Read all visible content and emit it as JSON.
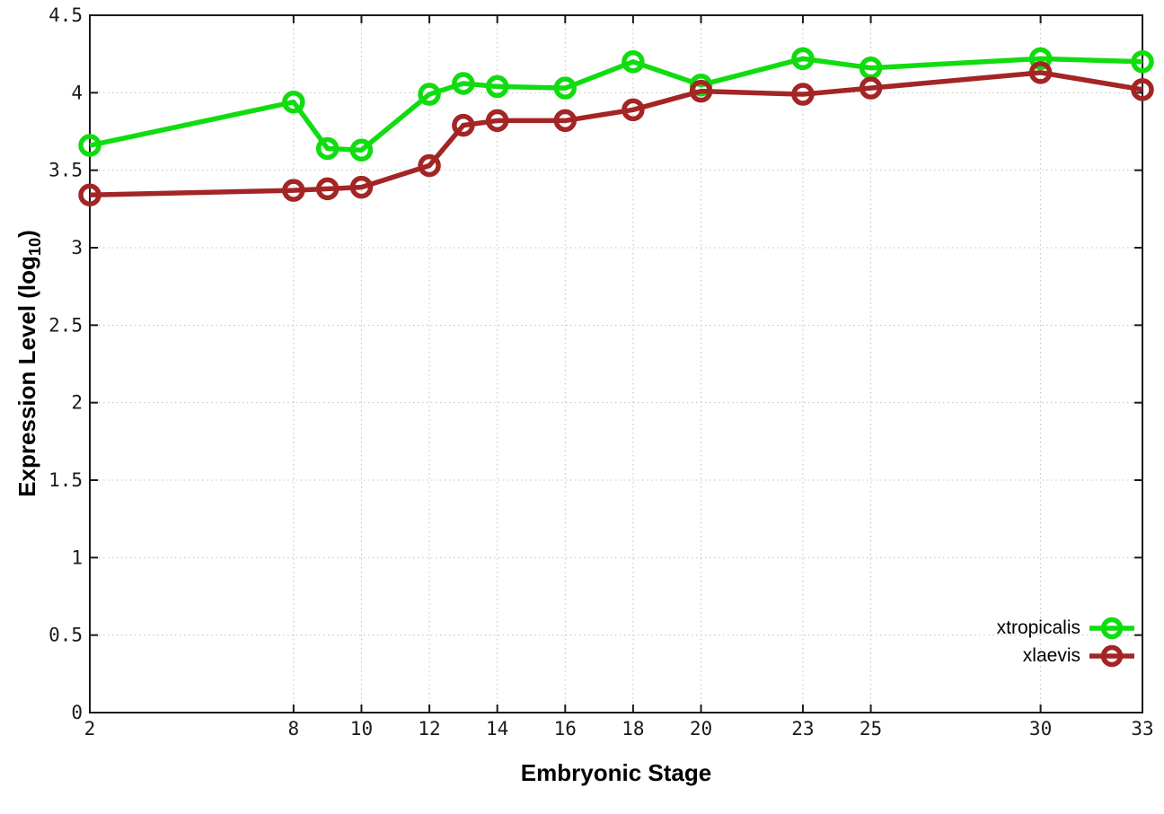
{
  "chart_data": {
    "type": "line",
    "title": "",
    "xlabel": "Embryonic Stage",
    "ylabel": "Expression Level (log10)",
    "ylabel_prefix": "Expression Level (log",
    "ylabel_sub": "10",
    "ylabel_suffix": ")",
    "xlim": [
      2,
      33
    ],
    "ylim": [
      0,
      4.5
    ],
    "x_ticks": [
      2,
      8,
      10,
      12,
      14,
      16,
      18,
      20,
      23,
      25,
      30,
      33
    ],
    "y_ticks": [
      0,
      0.5,
      1,
      1.5,
      2,
      2.5,
      3,
      3.5,
      4,
      4.5
    ],
    "y_tick_labels": [
      "0",
      "0.5",
      "1",
      "1.5",
      "2",
      "2.5",
      "3",
      "3.5",
      "4",
      "4.5"
    ],
    "grid": true,
    "marker": "open-circle",
    "legend_position": "inside-bottom-right",
    "series": [
      {
        "name": "xtropicalis",
        "color": "#10dc10",
        "x": [
          2,
          8,
          9,
          10,
          12,
          13,
          14,
          16,
          18,
          20,
          23,
          25,
          30,
          33
        ],
        "values": [
          3.66,
          3.94,
          3.64,
          3.63,
          3.99,
          4.06,
          4.04,
          4.03,
          4.2,
          4.05,
          4.22,
          4.16,
          4.22,
          4.2
        ]
      },
      {
        "name": "xlaevis",
        "color": "#a32525",
        "x": [
          2,
          8,
          9,
          10,
          12,
          13,
          14,
          16,
          18,
          20,
          23,
          25,
          30,
          33
        ],
        "values": [
          3.34,
          3.37,
          3.38,
          3.39,
          3.53,
          3.79,
          3.82,
          3.82,
          3.89,
          4.01,
          3.99,
          4.03,
          4.13,
          4.02
        ]
      }
    ],
    "style": {
      "grid_color": "#c0c0c0",
      "axis_color": "#1a1a1a",
      "background": "#ffffff"
    }
  }
}
